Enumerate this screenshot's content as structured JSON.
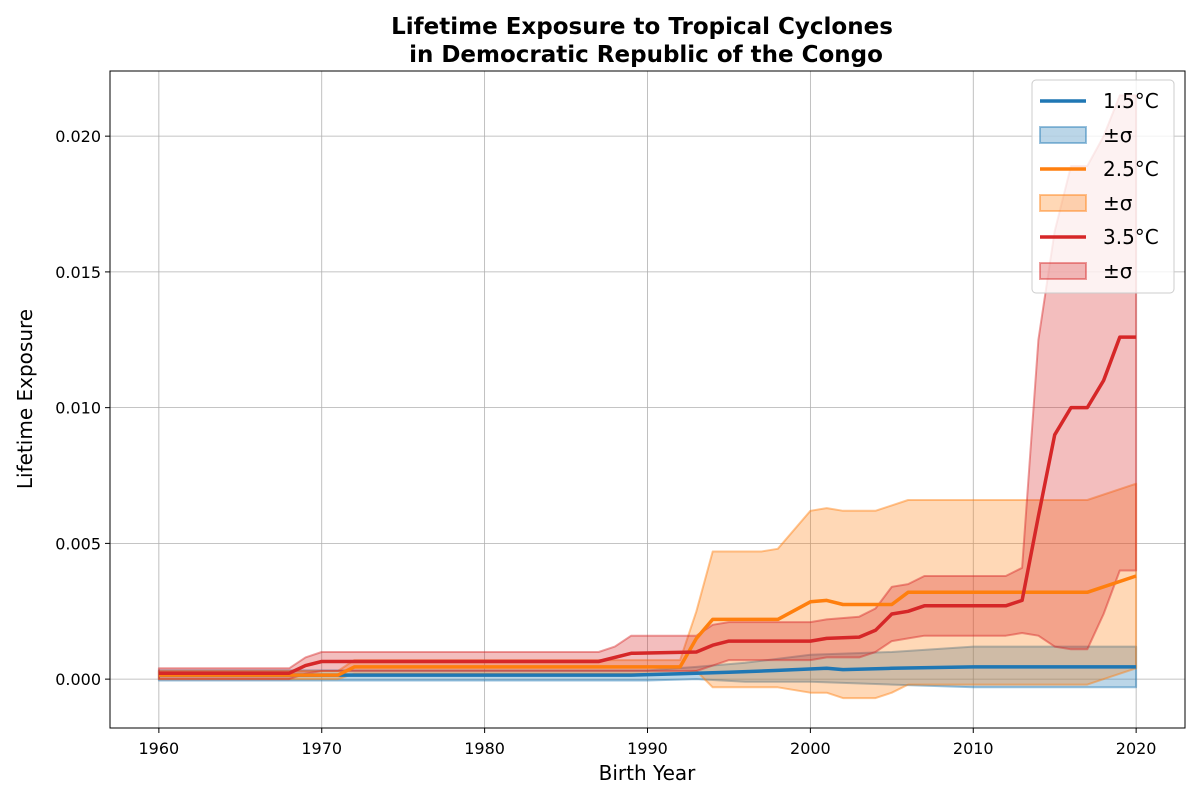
{
  "chart_data": {
    "type": "line",
    "title_line1": "Lifetime Exposure to Tropical Cyclones",
    "title_line2": "in Democratic Republic of the Congo",
    "xlabel": "Birth Year",
    "ylabel": "Lifetime Exposure",
    "xlim": [
      1957,
      2023
    ],
    "ylim": [
      -0.0018,
      0.0224
    ],
    "xticks": [
      1960,
      1970,
      1980,
      1990,
      2000,
      2010,
      2020
    ],
    "xtick_labels": [
      "1960",
      "1970",
      "1980",
      "1990",
      "2000",
      "2010",
      "2020"
    ],
    "yticks": [
      0.0,
      0.005,
      0.01,
      0.015,
      0.02
    ],
    "ytick_labels": [
      "0.000",
      "0.005",
      "0.010",
      "0.015",
      "0.020"
    ],
    "grid": true,
    "legend_position": "top-right",
    "series": [
      {
        "name": "1.5°C",
        "band_name": "±σ",
        "color": "#1f77b4",
        "mean": [
          [
            1960,
            0.00015
          ],
          [
            1970,
            0.00015
          ],
          [
            1980,
            0.00015
          ],
          [
            1989,
            0.00015
          ],
          [
            1992,
            0.0002
          ],
          [
            1995,
            0.00025
          ],
          [
            1998,
            0.00032
          ],
          [
            2001,
            0.0004
          ],
          [
            2002,
            0.00035
          ],
          [
            2005,
            0.0004
          ],
          [
            2010,
            0.00045
          ],
          [
            2017,
            0.00045
          ],
          [
            2020,
            0.00045
          ]
        ],
        "upper": [
          [
            1960,
            0.00032
          ],
          [
            1970,
            0.00032
          ],
          [
            1980,
            0.00032
          ],
          [
            1990,
            0.00032
          ],
          [
            1993,
            0.00045
          ],
          [
            1996,
            0.0006
          ],
          [
            2000,
            0.0009
          ],
          [
            2005,
            0.001
          ],
          [
            2010,
            0.0012
          ],
          [
            2020,
            0.0012
          ]
        ],
        "lower": [
          [
            1960,
            -5e-05
          ],
          [
            1970,
            -5e-05
          ],
          [
            1980,
            -5e-05
          ],
          [
            1990,
            -5e-05
          ],
          [
            1993,
            0.0
          ],
          [
            1996,
            -0.0001
          ],
          [
            2000,
            -0.0001
          ],
          [
            2005,
            -0.0002
          ],
          [
            2010,
            -0.0003
          ],
          [
            2020,
            -0.0003
          ]
        ]
      },
      {
        "name": "2.5°C",
        "band_name": "±σ",
        "color": "#ff7f0e",
        "mean": [
          [
            1960,
            0.00015
          ],
          [
            1970,
            0.00015
          ],
          [
            1971,
            0.00015
          ],
          [
            1972,
            0.00045
          ],
          [
            1992,
            0.00045
          ],
          [
            1993,
            0.0015
          ],
          [
            1994,
            0.0022
          ],
          [
            1998,
            0.0022
          ],
          [
            2000,
            0.00285
          ],
          [
            2001,
            0.0029
          ],
          [
            2002,
            0.00275
          ],
          [
            2005,
            0.00275
          ],
          [
            2006,
            0.0032
          ],
          [
            2017,
            0.0032
          ],
          [
            2020,
            0.0038
          ]
        ],
        "upper": [
          [
            1960,
            0.0003
          ],
          [
            1970,
            0.0003
          ],
          [
            1971,
            0.0003
          ],
          [
            1972,
            0.0007
          ],
          [
            1992,
            0.0007
          ],
          [
            1993,
            0.0025
          ],
          [
            1994,
            0.0047
          ],
          [
            1997,
            0.0047
          ],
          [
            1998,
            0.0048
          ],
          [
            1999,
            0.0055
          ],
          [
            2000,
            0.0062
          ],
          [
            2001,
            0.0063
          ],
          [
            2002,
            0.0062
          ],
          [
            2004,
            0.0062
          ],
          [
            2005,
            0.0064
          ],
          [
            2006,
            0.0066
          ],
          [
            2017,
            0.0066
          ],
          [
            2020,
            0.0072
          ]
        ],
        "lower": [
          [
            1960,
            0.0
          ],
          [
            1970,
            0.0
          ],
          [
            1971,
            0.0
          ],
          [
            1972,
            0.0002
          ],
          [
            1992,
            0.0002
          ],
          [
            1993,
            0.0003
          ],
          [
            1994,
            -0.0003
          ],
          [
            1997,
            -0.0003
          ],
          [
            1998,
            -0.0003
          ],
          [
            2000,
            -0.0005
          ],
          [
            2001,
            -0.0005
          ],
          [
            2002,
            -0.0007
          ],
          [
            2004,
            -0.0007
          ],
          [
            2005,
            -0.0005
          ],
          [
            2006,
            -0.0002
          ],
          [
            2017,
            -0.0002
          ],
          [
            2019,
            0.0002
          ],
          [
            2020,
            0.0004
          ]
        ]
      },
      {
        "name": "3.5°C",
        "band_name": "±σ",
        "color": "#d62728",
        "mean": [
          [
            1960,
            0.00022
          ],
          [
            1968,
            0.00022
          ],
          [
            1969,
            0.0005
          ],
          [
            1970,
            0.00065
          ],
          [
            1987,
            0.00065
          ],
          [
            1989,
            0.00095
          ],
          [
            1993,
            0.001
          ],
          [
            1994,
            0.00125
          ],
          [
            1995,
            0.0014
          ],
          [
            2000,
            0.0014
          ],
          [
            2001,
            0.0015
          ],
          [
            2003,
            0.00155
          ],
          [
            2004,
            0.0018
          ],
          [
            2005,
            0.0024
          ],
          [
            2006,
            0.0025
          ],
          [
            2007,
            0.0027
          ],
          [
            2012,
            0.0027
          ],
          [
            2013,
            0.0029
          ],
          [
            2014,
            0.006
          ],
          [
            2015,
            0.009
          ],
          [
            2016,
            0.01
          ],
          [
            2017,
            0.01
          ],
          [
            2018,
            0.011
          ],
          [
            2019,
            0.0126
          ],
          [
            2020,
            0.0126
          ]
        ],
        "upper": [
          [
            1960,
            0.0004
          ],
          [
            1968,
            0.0004
          ],
          [
            1969,
            0.0008
          ],
          [
            1970,
            0.001
          ],
          [
            1987,
            0.001
          ],
          [
            1988,
            0.0012
          ],
          [
            1989,
            0.0016
          ],
          [
            1993,
            0.0016
          ],
          [
            1994,
            0.002
          ],
          [
            1995,
            0.0021
          ],
          [
            2000,
            0.0021
          ],
          [
            2001,
            0.0022
          ],
          [
            2003,
            0.0023
          ],
          [
            2004,
            0.0026
          ],
          [
            2005,
            0.0034
          ],
          [
            2006,
            0.0035
          ],
          [
            2007,
            0.0038
          ],
          [
            2012,
            0.0038
          ],
          [
            2013,
            0.0041
          ],
          [
            2014,
            0.0125
          ],
          [
            2015,
            0.0165
          ],
          [
            2016,
            0.0189
          ],
          [
            2017,
            0.0189
          ],
          [
            2018,
            0.02
          ],
          [
            2019,
            0.0215
          ],
          [
            2020,
            0.0215
          ]
        ],
        "lower": [
          [
            1960,
            0.0
          ],
          [
            1968,
            0.0
          ],
          [
            1969,
            0.0002
          ],
          [
            1970,
            0.0003
          ],
          [
            1987,
            0.0003
          ],
          [
            1989,
            0.0003
          ],
          [
            1993,
            0.0003
          ],
          [
            1994,
            0.0005
          ],
          [
            1995,
            0.0007
          ],
          [
            2000,
            0.0007
          ],
          [
            2001,
            0.0008
          ],
          [
            2003,
            0.0008
          ],
          [
            2004,
            0.001
          ],
          [
            2005,
            0.0014
          ],
          [
            2006,
            0.0015
          ],
          [
            2007,
            0.0016
          ],
          [
            2012,
            0.0016
          ],
          [
            2013,
            0.0017
          ],
          [
            2014,
            0.0016
          ],
          [
            2015,
            0.0012
          ],
          [
            2016,
            0.0011
          ],
          [
            2017,
            0.0011
          ],
          [
            2018,
            0.0024
          ],
          [
            2019,
            0.004
          ],
          [
            2020,
            0.004
          ]
        ]
      }
    ]
  }
}
